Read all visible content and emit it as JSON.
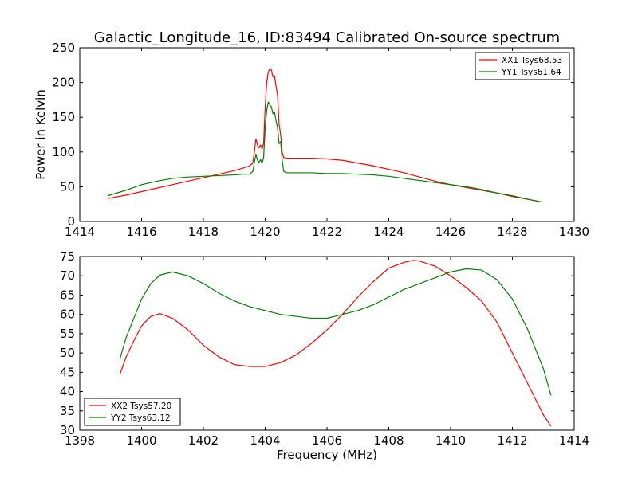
{
  "chart_data": [
    {
      "type": "line",
      "title": "Galactic_Longitude_16, ID:83494 Calibrated On-source spectrum",
      "xlabel": "",
      "ylabel": "Power in Kelvin",
      "xlim": [
        1414,
        1430
      ],
      "ylim": [
        0,
        250
      ],
      "xticks": [
        1414,
        1416,
        1418,
        1420,
        1422,
        1424,
        1426,
        1428,
        1430
      ],
      "yticks": [
        0,
        50,
        100,
        150,
        200,
        250
      ],
      "legend_position": "top-right",
      "grid": false,
      "series": [
        {
          "name": "XX1 Tsys68.53",
          "color": "#ff0000",
          "x": [
            1414.9,
            1415.5,
            1416.0,
            1416.5,
            1417.0,
            1417.5,
            1418.0,
            1418.5,
            1419.0,
            1419.3,
            1419.5,
            1419.6,
            1419.65,
            1419.7,
            1419.75,
            1419.8,
            1419.85,
            1419.9,
            1419.95,
            1420.0,
            1420.05,
            1420.1,
            1420.15,
            1420.2,
            1420.25,
            1420.3,
            1420.35,
            1420.4,
            1420.45,
            1420.5,
            1420.55,
            1420.6,
            1420.7,
            1421.0,
            1421.5,
            1422.0,
            1422.5,
            1423.0,
            1423.5,
            1424.0,
            1424.5,
            1425.0,
            1425.5,
            1426.0,
            1426.5,
            1427.0,
            1427.5,
            1428.0,
            1428.5,
            1428.95
          ],
          "y": [
            33,
            38,
            43,
            48,
            53,
            58,
            63,
            68,
            73,
            77,
            80,
            84,
            100,
            119,
            110,
            106,
            110,
            104,
            113,
            165,
            200,
            215,
            220,
            218,
            208,
            210,
            195,
            182,
            140,
            125,
            100,
            92,
            91,
            91,
            91,
            90,
            88,
            84,
            80,
            75,
            70,
            64,
            58,
            53,
            49,
            45,
            41,
            36,
            32,
            28
          ]
        },
        {
          "name": "YY1 Tsys61.64",
          "color": "#008000",
          "x": [
            1414.9,
            1415.5,
            1416.0,
            1416.5,
            1417.0,
            1417.5,
            1418.0,
            1418.5,
            1419.0,
            1419.3,
            1419.5,
            1419.6,
            1419.65,
            1419.7,
            1419.75,
            1419.8,
            1419.85,
            1419.9,
            1419.95,
            1420.0,
            1420.05,
            1420.1,
            1420.15,
            1420.2,
            1420.25,
            1420.3,
            1420.35,
            1420.4,
            1420.45,
            1420.5,
            1420.55,
            1420.6,
            1420.7,
            1421.0,
            1421.5,
            1422.0,
            1422.5,
            1423.0,
            1423.5,
            1424.0,
            1424.5,
            1425.0,
            1425.5,
            1426.0,
            1426.5,
            1427.0,
            1427.5,
            1428.0,
            1428.5,
            1428.95
          ],
          "y": [
            37,
            45,
            53,
            58,
            62,
            64,
            65,
            66,
            67,
            68,
            68,
            72,
            85,
            97,
            88,
            85,
            89,
            84,
            92,
            135,
            160,
            172,
            168,
            165,
            155,
            158,
            145,
            135,
            112,
            115,
            88,
            72,
            70,
            70,
            70,
            69,
            69,
            68,
            67,
            65,
            62,
            59,
            56,
            53,
            50,
            46,
            41,
            37,
            32,
            28
          ]
        }
      ]
    },
    {
      "type": "line",
      "title": "",
      "xlabel": "Frequency (MHz)",
      "ylabel": "",
      "xlim": [
        1398,
        1414
      ],
      "ylim": [
        30,
        75
      ],
      "xticks": [
        1398,
        1400,
        1402,
        1404,
        1406,
        1408,
        1410,
        1412,
        1414
      ],
      "yticks": [
        30,
        35,
        40,
        45,
        50,
        55,
        60,
        65,
        70,
        75
      ],
      "legend_position": "lower-left",
      "grid": false,
      "series": [
        {
          "name": "XX2 Tsys57.20",
          "color": "#ff0000",
          "x": [
            1399.3,
            1399.5,
            1399.8,
            1400.0,
            1400.3,
            1400.6,
            1401.0,
            1401.5,
            1402.0,
            1402.5,
            1403.0,
            1403.5,
            1404.0,
            1404.5,
            1405.0,
            1405.5,
            1406.0,
            1406.5,
            1407.0,
            1407.5,
            1408.0,
            1408.5,
            1408.8,
            1409.0,
            1409.5,
            1410.0,
            1410.5,
            1411.0,
            1411.5,
            1412.0,
            1412.5,
            1413.0,
            1413.25
          ],
          "y": [
            44.5,
            49,
            54,
            57,
            59.5,
            60.2,
            59,
            56,
            52,
            49,
            47,
            46.5,
            46.5,
            47.5,
            49.5,
            52.5,
            56,
            60,
            64.5,
            68.5,
            72,
            73.5,
            74,
            73.8,
            72.5,
            70,
            67,
            63.5,
            58,
            50,
            42,
            34,
            31
          ]
        },
        {
          "name": "YY2 Tsys63.12",
          "color": "#008000",
          "x": [
            1399.3,
            1399.5,
            1399.8,
            1400.0,
            1400.3,
            1400.6,
            1401.0,
            1401.5,
            1402.0,
            1402.5,
            1403.0,
            1403.5,
            1404.0,
            1404.5,
            1405.0,
            1405.5,
            1406.0,
            1406.5,
            1407.0,
            1407.5,
            1408.0,
            1408.5,
            1409.0,
            1409.5,
            1410.0,
            1410.5,
            1411.0,
            1411.5,
            1412.0,
            1412.5,
            1413.0,
            1413.25
          ],
          "y": [
            48.5,
            54,
            60,
            64,
            68,
            70.2,
            71,
            70,
            68,
            65.5,
            63.5,
            62,
            61,
            60,
            59.5,
            59,
            59,
            60,
            61,
            62.5,
            64.5,
            66.5,
            68,
            69.5,
            71,
            71.8,
            71.5,
            69,
            64,
            56,
            46,
            39
          ]
        }
      ]
    }
  ]
}
